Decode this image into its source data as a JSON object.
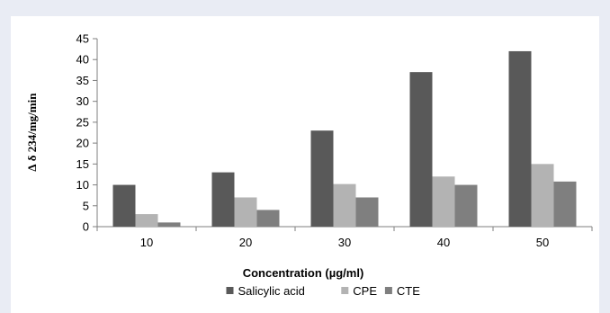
{
  "chart_data": {
    "type": "bar",
    "categories": [
      "10",
      "20",
      "30",
      "40",
      "50"
    ],
    "series": [
      {
        "name": "Salicylic acid",
        "values": [
          10,
          13,
          23,
          37,
          42
        ],
        "color": "#595959"
      },
      {
        "name": "CPE",
        "values": [
          3,
          7,
          10.2,
          12,
          15
        ],
        "color": "#b3b3b3"
      },
      {
        "name": "CTE",
        "values": [
          1,
          4,
          7,
          10,
          10.8
        ],
        "color": "#7f7f7f"
      }
    ],
    "title": "",
    "xlabel": "Concentration (µg/ml)",
    "ylabel": "∆ δ 234/mg/min",
    "ylim": [
      0,
      45
    ],
    "yticks": [
      0,
      5,
      10,
      15,
      20,
      25,
      30,
      35,
      40,
      45
    ],
    "grid": false,
    "legend_position": "bottom"
  }
}
